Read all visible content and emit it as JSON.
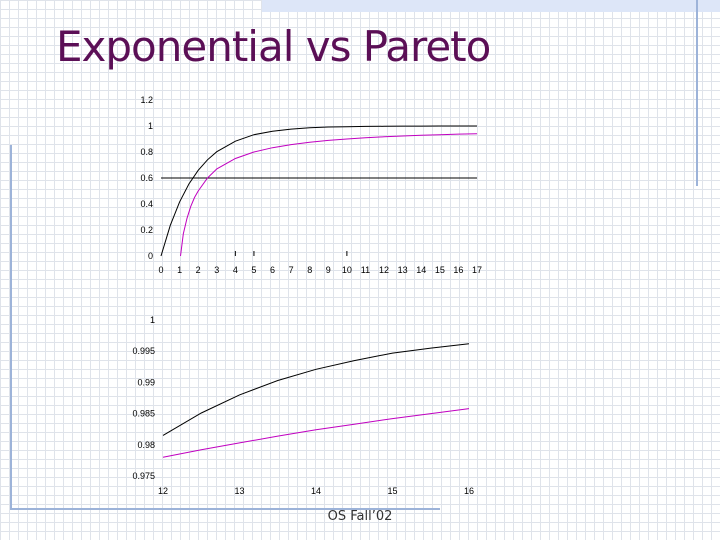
{
  "slide": {
    "title": "Exponential vs Pareto",
    "footer": "OS Fall’02"
  },
  "colors": {
    "title": "#5b0f56",
    "exponential": "#000000",
    "pareto": "#c000c0",
    "accent": "#9db3d9"
  },
  "chart_data": [
    {
      "type": "line",
      "title": "",
      "xlabel": "",
      "ylabel": "",
      "xlim": [
        0,
        17
      ],
      "ylim": [
        0,
        1.2
      ],
      "x_ticks": [
        "0",
        "1",
        "2",
        "3",
        "4",
        "5",
        "6",
        "7",
        "8",
        "9",
        "10",
        "11",
        "12",
        "13",
        "14",
        "15",
        "16",
        "17"
      ],
      "y_ticks": [
        "0",
        "0.2",
        "0.4",
        "0.6",
        "0.8",
        "1",
        "1.2"
      ],
      "reference_line": {
        "y": 0.6
      },
      "series": [
        {
          "color": "#000000",
          "x": [
            0,
            0.5,
            1,
            1.5,
            2,
            2.5,
            3,
            4,
            5,
            6,
            7,
            8,
            9,
            10,
            11,
            12,
            13,
            14,
            15,
            16,
            17
          ],
          "y": [
            0,
            0.236,
            0.416,
            0.554,
            0.659,
            0.74,
            0.802,
            0.883,
            0.933,
            0.96,
            0.976,
            0.986,
            0.992,
            0.995,
            0.997,
            0.998,
            0.999,
            0.999,
            1.0,
            1.0,
            1.0
          ]
        },
        {
          "color": "#c000c0",
          "x": [
            1.05,
            1.2,
            1.4,
            1.6,
            1.8,
            2,
            2.5,
            3,
            4,
            5,
            6,
            7,
            8,
            9,
            10,
            11,
            12,
            13,
            14,
            15,
            16,
            17
          ],
          "y": [
            0.0,
            0.17,
            0.29,
            0.38,
            0.45,
            0.5,
            0.6,
            0.67,
            0.75,
            0.8,
            0.833,
            0.857,
            0.875,
            0.889,
            0.9,
            0.909,
            0.917,
            0.923,
            0.929,
            0.933,
            0.9375,
            0.941
          ]
        }
      ]
    },
    {
      "type": "line",
      "title": "",
      "xlabel": "",
      "ylabel": "",
      "xlim": [
        12,
        16
      ],
      "ylim": [
        0.975,
        1
      ],
      "x_ticks": [
        "12",
        "13",
        "14",
        "15",
        "16"
      ],
      "y_ticks": [
        "0.975",
        "0.98",
        "0.985",
        "0.99",
        "0.995",
        "1"
      ],
      "series": [
        {
          "color": "#000000",
          "x": [
            12,
            12.5,
            13,
            13.5,
            14,
            14.5,
            15,
            15.5,
            16
          ],
          "y": [
            0.9815,
            0.9851,
            0.988,
            0.9903,
            0.9921,
            0.9935,
            0.9947,
            0.9955,
            0.9962
          ]
        },
        {
          "color": "#c000c0",
          "x": [
            12,
            12.5,
            13,
            13.5,
            14,
            14.5,
            15,
            15.5,
            16
          ],
          "y": [
            0.978,
            0.9792,
            0.9803,
            0.9814,
            0.9824,
            0.9833,
            0.9842,
            0.985,
            0.9858
          ]
        }
      ]
    }
  ]
}
